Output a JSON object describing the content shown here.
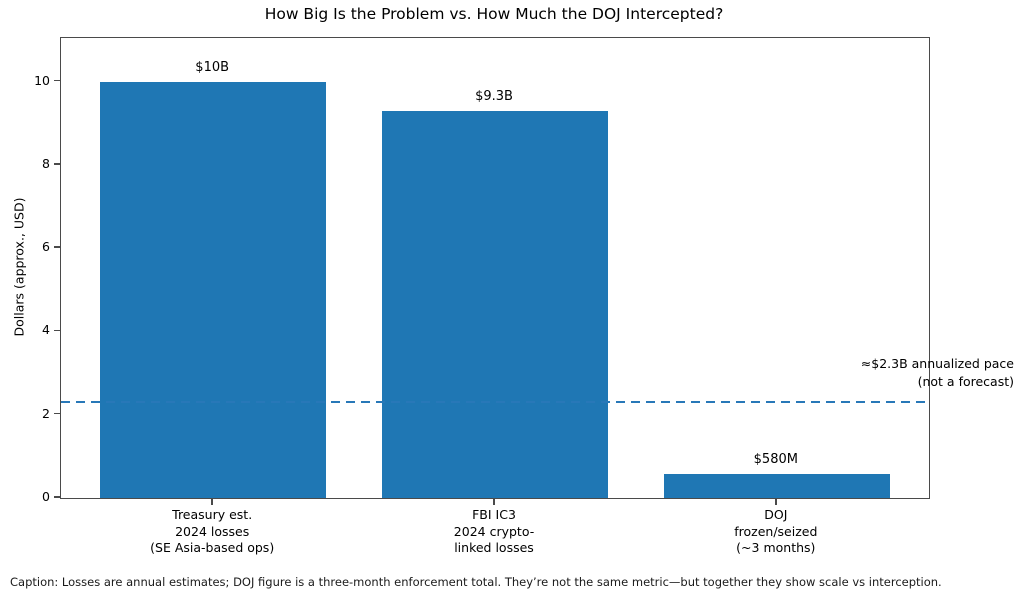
{
  "figure": {
    "caption": "Caption: Losses are annual estimates; DOJ figure is a three-month enforcement total. They’re not the same metric—but together they show scale vs interception."
  },
  "chart_data": {
    "type": "bar",
    "title": "How Big Is the Problem vs. How Much the DOJ Intercepted?",
    "categories": [
      "Treasury est.\n2024 losses\n(SE Asia-based ops)",
      "FBI IC3\n2024 crypto-\nlinked losses",
      "DOJ\nfrozen/seized\n(~3 months)"
    ],
    "values": [
      10,
      9.3,
      0.58
    ],
    "bar_labels": [
      "$10B",
      "$9.3B",
      "$580M"
    ],
    "xlabel": "",
    "ylabel": "Dollars (approx., USD)",
    "yticks": [
      0,
      2,
      4,
      6,
      8,
      10
    ],
    "ylim": [
      0,
      11.05
    ],
    "grid": false,
    "legend": false,
    "bar_color": "#1f77b4",
    "reference_line": {
      "value": 2.3,
      "style": "dashed",
      "color": "#2878b8",
      "label": "≈$2.3B annualized pace\n(not a forecast)"
    }
  }
}
